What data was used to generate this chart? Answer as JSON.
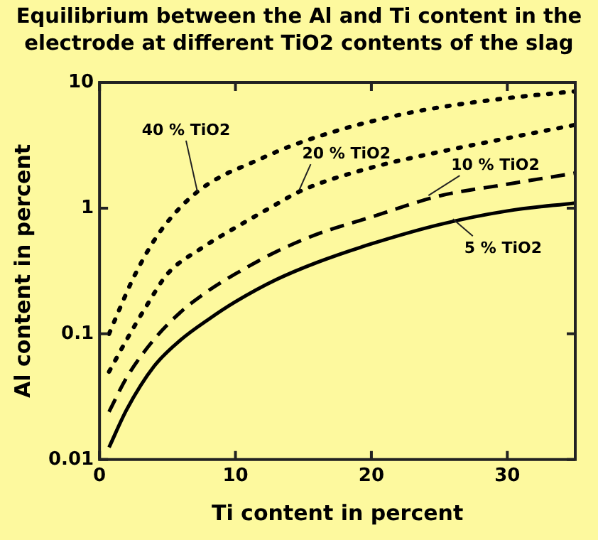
{
  "chart_data": {
    "type": "line",
    "title": "Equilibrium between the Al and Ti content in the electrode at different TiO2 contents of the slag",
    "xlabel": "Ti content in percent",
    "ylabel": "Al content in percent",
    "log": "y",
    "grid": false,
    "legend": false,
    "marker": "none",
    "xlim": [
      0,
      35
    ],
    "xticks": [
      0,
      10,
      20,
      30
    ],
    "ylim": [
      0.01,
      10
    ],
    "yticks": [
      0.01,
      0.1,
      1,
      10
    ],
    "series": [
      {
        "color": "#000000",
        "line_style": "solid",
        "x": [
          0.7,
          2,
          4,
          6,
          8,
          10,
          13,
          16,
          20,
          25,
          30,
          35
        ],
        "values": [
          0.0125,
          0.025,
          0.055,
          0.09,
          0.13,
          0.18,
          0.27,
          0.37,
          0.52,
          0.74,
          0.95,
          1.1
        ]
      },
      {
        "color": "#000000",
        "line_style": "dashed",
        "x": [
          0.7,
          2,
          4,
          6,
          8,
          10,
          13,
          16,
          20,
          25,
          30,
          35
        ],
        "values": [
          0.024,
          0.045,
          0.09,
          0.15,
          0.22,
          0.3,
          0.45,
          0.62,
          0.85,
          1.25,
          1.55,
          1.9
        ]
      },
      {
        "color": "#000000",
        "line_style": "dotted",
        "x": [
          0.7,
          2,
          3.5,
          5,
          7.5,
          10,
          12.5,
          15,
          20,
          25,
          30,
          35
        ],
        "values": [
          0.05,
          0.09,
          0.17,
          0.3,
          0.48,
          0.7,
          1.0,
          1.4,
          2.1,
          2.8,
          3.6,
          4.6
        ]
      },
      {
        "color": "#000000",
        "line_style": "dotted",
        "x": [
          0.7,
          1.5,
          2.5,
          4,
          5.5,
          7.2,
          9,
          11,
          14,
          17.7,
          21,
          24.5,
          30,
          35
        ],
        "values": [
          0.1,
          0.16,
          0.28,
          0.55,
          0.9,
          1.35,
          1.8,
          2.25,
          3.1,
          4.2,
          5.2,
          6.2,
          7.5,
          8.5
        ]
      }
    ],
    "annotations": [
      {
        "text": "5 % TiO2",
        "x": 26,
        "y": 0.82
      },
      {
        "text": "10 % TiO2",
        "x": 24.2,
        "y": 1.26
      },
      {
        "text": "20 % TiO2",
        "x": 14.7,
        "y": 1.4
      },
      {
        "text": "40 % TiO2",
        "x": 7.2,
        "y": 1.35
      }
    ]
  }
}
